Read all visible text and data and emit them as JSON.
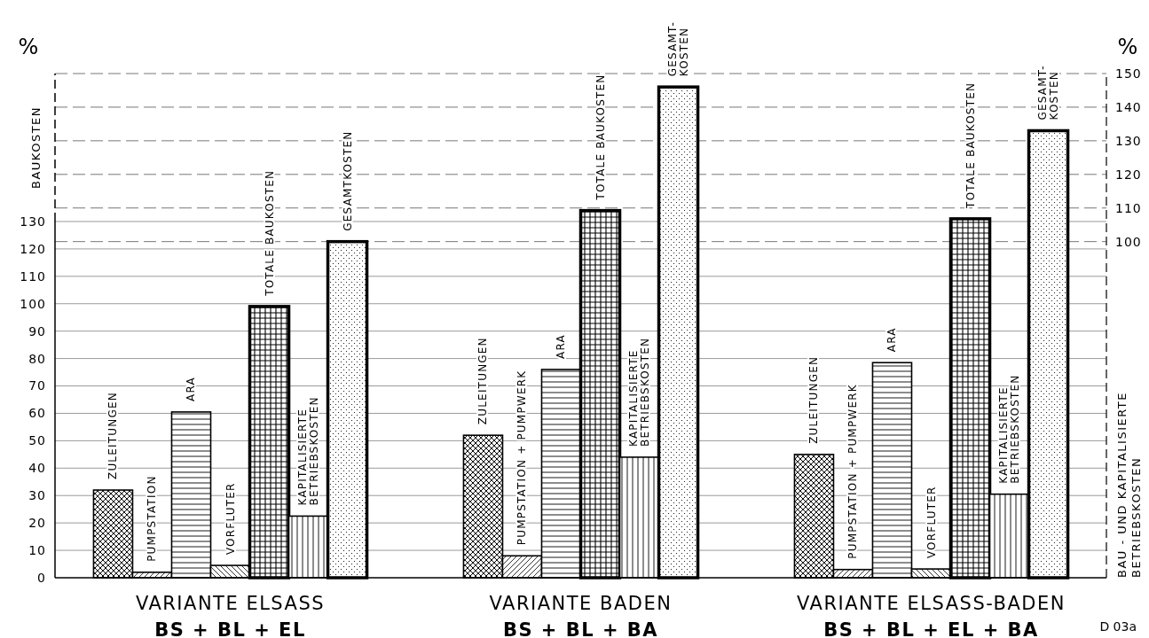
{
  "chart_data": {
    "type": "bar",
    "categories": [
      "VARIANTE ELSASS\nBS + BL + EL",
      "VARIANTE BADEN\nBS + BL + BA",
      "VARIANTE ELSASS-BADEN\nBS + BL + EL + BA"
    ],
    "series": [
      {
        "color": "#000000",
        "values": [
          32,
          52,
          45
        ],
        "value_labels": [
          "ZULEITUNGEN",
          "ZULEITUNGEN",
          "ZULEITUNGEN"
        ]
      },
      {
        "color": "#000000",
        "values": [
          2,
          8,
          3
        ],
        "value_labels": [
          "PUMPSTATION",
          "PUMPSTATION + PUMPWERK",
          "PUMPSTATION + PUMPWERK"
        ]
      },
      {
        "color": "#000000",
        "values": [
          60.5,
          76,
          78.5
        ],
        "value_labels": [
          "ARA",
          "ARA",
          "ARA"
        ]
      },
      {
        "color": "#000000",
        "values": [
          4.5,
          null,
          3.2
        ],
        "value_labels": [
          "VORFLUTER",
          null,
          "VORFLUTER"
        ]
      },
      {
        "color": "#000000",
        "values": [
          99,
          134,
          131
        ],
        "value_labels": [
          "TOTALE  BAUKOSTEN",
          "TOTALE  BAUKOSTEN",
          "TOTALE  BAUKOSTEN"
        ]
      },
      {
        "color": "#000000",
        "values": [
          22.5,
          44,
          30.5
        ],
        "value_labels": [
          "KAPITALISIERTE\nBETRIEBSKOSTEN",
          "KAPITALISIERTE\nBETRIEBSKOSTEN",
          "KAPITALISIERTE\nBETRIEBSKOSTEN"
        ]
      },
      {
        "color": "#000000",
        "axis": "y2",
        "values": [
          100,
          146,
          133
        ],
        "value_labels": [
          "GESAMTKOSTEN",
          "GESAMT-\nKOSTEN",
          "GESAMT-\nKOSTEN"
        ]
      }
    ],
    "ylim": [
      0,
      184
    ],
    "yticks": [
      0,
      10,
      20,
      30,
      40,
      50,
      60,
      70,
      80,
      90,
      100,
      110,
      120,
      130
    ],
    "y2lim": [
      0,
      150
    ],
    "y2ticks": [
      100,
      110,
      120,
      130,
      140,
      150
    ],
    "ylabel": "BAUKOSTEN",
    "y2label": "BAU - UND KAPITALISIERTE\nBETRIEBSKOSTEN",
    "grid": true,
    "annotations": [
      "%",
      "%",
      "D 03a"
    ]
  }
}
